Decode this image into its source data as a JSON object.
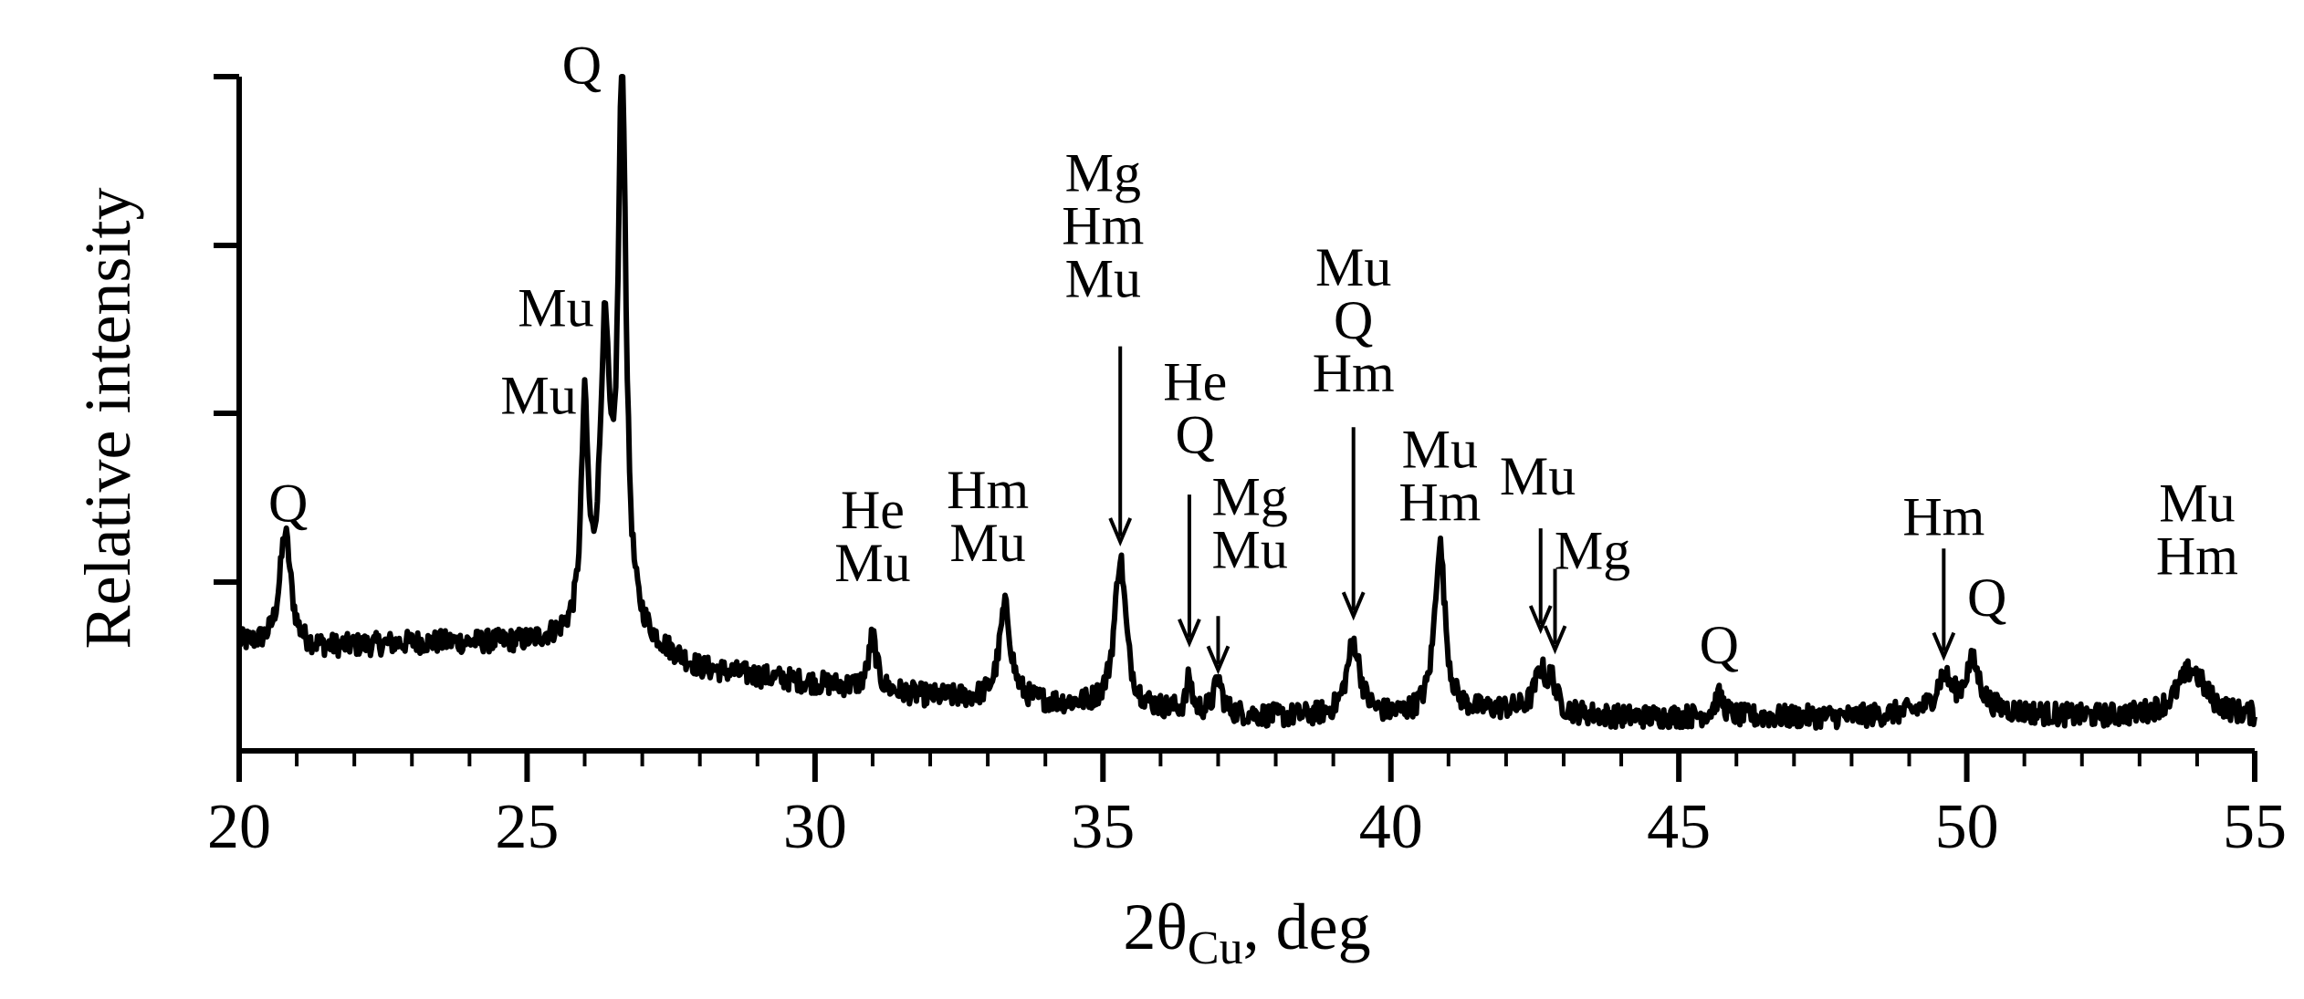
{
  "chart_data": {
    "type": "line",
    "title": "",
    "xlabel": "2θCu, deg",
    "xlabel_parts": {
      "main": "2θ",
      "sub": "Cu",
      "tail": ", deg"
    },
    "ylabel": "Relative intensity",
    "xlim": [
      20,
      55
    ],
    "ylim": [
      0,
      100
    ],
    "x_ticks": [
      20,
      25,
      30,
      35,
      40,
      45,
      50,
      55
    ],
    "x_tick_labels": [
      "20",
      "25",
      "30",
      "35",
      "40",
      "45",
      "50",
      "55"
    ],
    "y_tick_labels_shown": false,
    "grid": false,
    "legend": "none",
    "line_color": "#000000",
    "baseline": [
      [
        20,
        16
      ],
      [
        21,
        15
      ],
      [
        23,
        16
      ],
      [
        25,
        16
      ],
      [
        26,
        17
      ],
      [
        27,
        16
      ],
      [
        28,
        12
      ],
      [
        30,
        10
      ],
      [
        32,
        8
      ],
      [
        34,
        7
      ],
      [
        36,
        6
      ],
      [
        38,
        5
      ],
      [
        40,
        5
      ],
      [
        42,
        6
      ],
      [
        44,
        5
      ],
      [
        46,
        5
      ],
      [
        48,
        5
      ],
      [
        50,
        6
      ],
      [
        52,
        5
      ],
      [
        55,
        5
      ]
    ],
    "peaks": [
      {
        "x": 20.8,
        "height": 17,
        "width": 0.12
      },
      {
        "x": 26.0,
        "height": 32,
        "width": 0.07
      },
      {
        "x": 26.35,
        "height": 42,
        "width": 0.1
      },
      {
        "x": 26.65,
        "height": 84,
        "width": 0.08
      },
      {
        "x": 31.0,
        "height": 8,
        "width": 0.08
      },
      {
        "x": 33.3,
        "height": 14,
        "width": 0.12
      },
      {
        "x": 35.3,
        "height": 22,
        "width": 0.12
      },
      {
        "x": 36.5,
        "height": 5,
        "width": 0.05
      },
      {
        "x": 37.0,
        "height": 5,
        "width": 0.08
      },
      {
        "x": 39.35,
        "height": 11,
        "width": 0.14
      },
      {
        "x": 40.85,
        "height": 25,
        "width": 0.11
      },
      {
        "x": 42.6,
        "height": 6,
        "width": 0.12
      },
      {
        "x": 42.8,
        "height": 4,
        "width": 0.08
      },
      {
        "x": 45.7,
        "height": 3,
        "width": 0.1
      },
      {
        "x": 49.6,
        "height": 5,
        "width": 0.15
      },
      {
        "x": 50.1,
        "height": 7,
        "width": 0.15
      },
      {
        "x": 53.9,
        "height": 7,
        "width": 0.3
      }
    ],
    "annotations": [
      {
        "lines": [
          "Q"
        ],
        "x": 20.85,
        "y": 34,
        "arrow": false
      },
      {
        "lines": [
          "Mu"
        ],
        "x": 25.2,
        "y": 50,
        "arrow": false
      },
      {
        "lines": [
          "Mu"
        ],
        "x": 25.5,
        "y": 63,
        "arrow": false
      },
      {
        "lines": [
          "Q"
        ],
        "x": 25.95,
        "y": 99,
        "arrow": false
      },
      {
        "lines": [
          "He",
          "Mu"
        ],
        "x": 31.0,
        "y": 33,
        "arrow": false
      },
      {
        "lines": [
          "Hm",
          "Mu"
        ],
        "x": 33.0,
        "y": 36,
        "arrow": false
      },
      {
        "lines": [
          "Mg",
          "Hm",
          "Mu"
        ],
        "x": 35.0,
        "y": 83,
        "arrow": true,
        "arrow_x": 35.3,
        "arrow_from": 60,
        "arrow_to": 31
      },
      {
        "lines": [
          "He",
          "Q"
        ],
        "x": 36.6,
        "y": 52,
        "arrow": true,
        "arrow_x": 36.5,
        "arrow_from": 38,
        "arrow_to": 16
      },
      {
        "lines": [
          "Mg",
          "Mu"
        ],
        "x": 37.55,
        "y": 35,
        "arrow": true,
        "arrow_x": 37.0,
        "arrow_from": 20,
        "arrow_to": 12
      },
      {
        "lines": [
          "Mu",
          "Q",
          "Hm"
        ],
        "x": 39.35,
        "y": 69,
        "arrow": true,
        "arrow_x": 39.35,
        "arrow_from": 48,
        "arrow_to": 20
      },
      {
        "lines": [
          "Mu",
          "Hm"
        ],
        "x": 40.85,
        "y": 42,
        "arrow": false
      },
      {
        "lines": [
          "Mu"
        ],
        "x": 42.55,
        "y": 38,
        "arrow": true,
        "arrow_x": 42.6,
        "arrow_from": 33,
        "arrow_to": 18
      },
      {
        "lines": [
          "Mg"
        ],
        "x": 43.5,
        "y": 27,
        "arrow": true,
        "arrow_x": 42.85,
        "arrow_from": 27,
        "arrow_to": 15
      },
      {
        "lines": [
          "Q"
        ],
        "x": 45.7,
        "y": 13,
        "arrow": false
      },
      {
        "lines": [
          "Hm"
        ],
        "x": 49.6,
        "y": 32,
        "arrow": true,
        "arrow_x": 49.6,
        "arrow_from": 30,
        "arrow_to": 14
      },
      {
        "lines": [
          "Q"
        ],
        "x": 50.35,
        "y": 20,
        "arrow": false
      },
      {
        "lines": [
          "Mu",
          "Hm"
        ],
        "x": 54.0,
        "y": 34,
        "arrow": false
      }
    ]
  }
}
